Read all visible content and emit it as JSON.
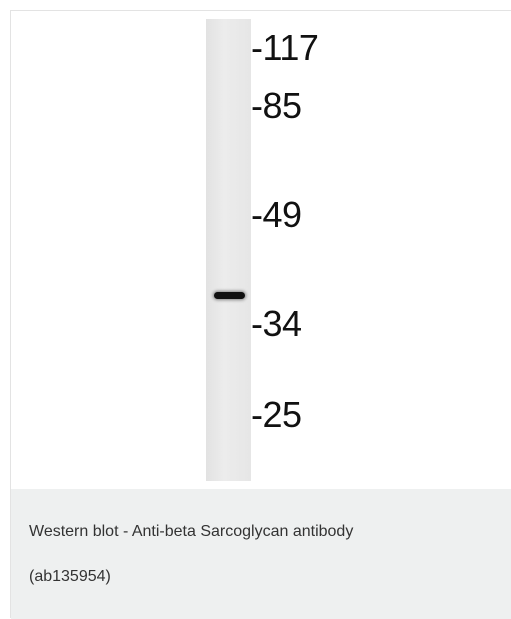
{
  "markers": [
    "-117",
    "-85",
    "-49",
    "-34",
    "-25"
  ],
  "caption": [
    "Western blot - Anti-beta Sarcoglycan antibody",
    "(ab135954)"
  ]
}
